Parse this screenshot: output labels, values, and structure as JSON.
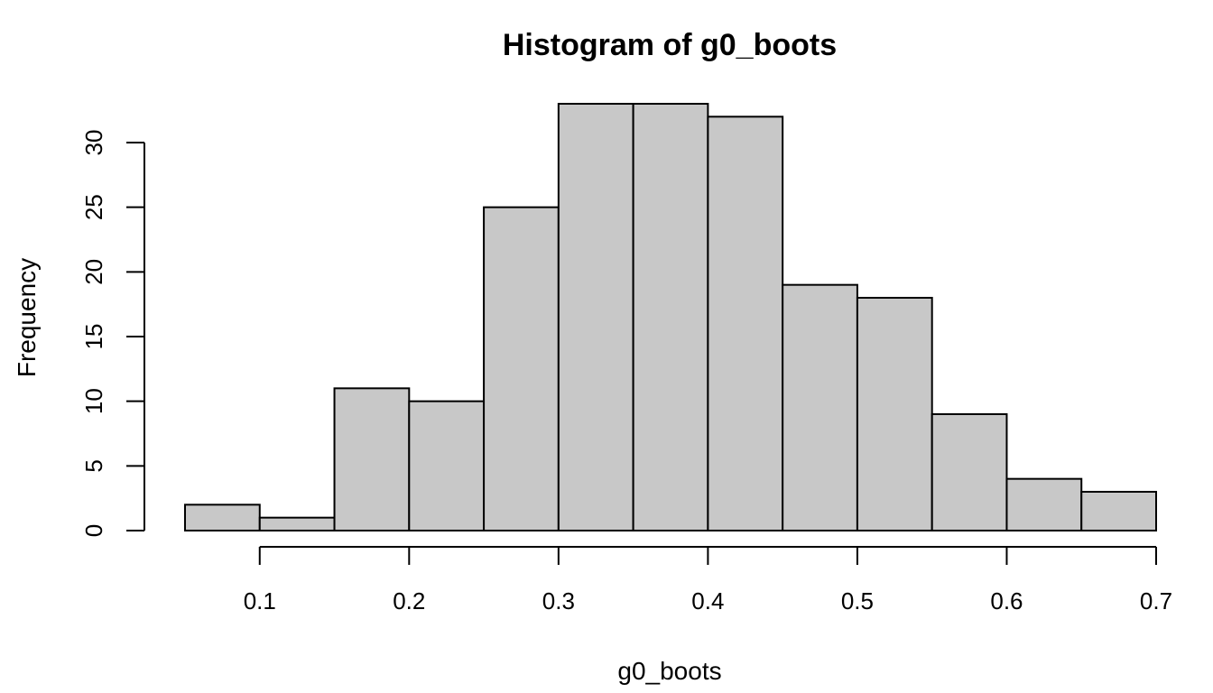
{
  "chart_data": {
    "type": "bar",
    "title": "Histogram of g0_boots",
    "xlabel": "g0_boots",
    "ylabel": "Frequency",
    "bins": [
      {
        "start": 0.05,
        "end": 0.1,
        "count": 2
      },
      {
        "start": 0.1,
        "end": 0.15,
        "count": 1
      },
      {
        "start": 0.15,
        "end": 0.2,
        "count": 11
      },
      {
        "start": 0.2,
        "end": 0.25,
        "count": 10
      },
      {
        "start": 0.25,
        "end": 0.3,
        "count": 25
      },
      {
        "start": 0.3,
        "end": 0.35,
        "count": 33
      },
      {
        "start": 0.35,
        "end": 0.4,
        "count": 33
      },
      {
        "start": 0.4,
        "end": 0.45,
        "count": 32
      },
      {
        "start": 0.45,
        "end": 0.5,
        "count": 19
      },
      {
        "start": 0.5,
        "end": 0.55,
        "count": 18
      },
      {
        "start": 0.55,
        "end": 0.6,
        "count": 9
      },
      {
        "start": 0.6,
        "end": 0.65,
        "count": 4
      },
      {
        "start": 0.65,
        "end": 0.7,
        "count": 3
      }
    ],
    "x_ticks": [
      0.1,
      0.2,
      0.3,
      0.4,
      0.5,
      0.6,
      0.7
    ],
    "x_tick_labels": [
      "0.1",
      "0.2",
      "0.3",
      "0.4",
      "0.5",
      "0.6",
      "0.7"
    ],
    "y_ticks": [
      0,
      5,
      10,
      15,
      20,
      25,
      30
    ],
    "y_tick_labels": [
      "0",
      "5",
      "10",
      "15",
      "20",
      "25",
      "30"
    ],
    "xlim": [
      0.05,
      0.7
    ],
    "ylim": [
      0,
      33
    ],
    "grid": false,
    "legend": "none",
    "bar_fill": "#c8c8c8",
    "bar_stroke": "#000000"
  }
}
